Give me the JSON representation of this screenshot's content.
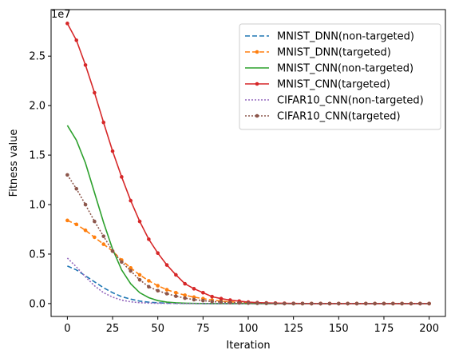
{
  "chart_data": {
    "type": "line",
    "xlabel": "Iteration",
    "ylabel": "Fitness value",
    "y_scale_note": "1e7",
    "xlim": [
      -9,
      209
    ],
    "ylim": [
      -0.13,
      2.97
    ],
    "x_ticks": [
      0,
      25,
      50,
      75,
      100,
      125,
      150,
      175,
      200
    ],
    "y_ticks": [
      0.0,
      0.5,
      1.0,
      1.5,
      2.0,
      2.5
    ],
    "y_tick_labels": [
      "0.0",
      "0.5",
      "1.0",
      "1.5",
      "2.0",
      "2.5"
    ],
    "legend_position": "top-right",
    "grid": false,
    "series": [
      {
        "name": "MNIST_DNN(non-targeted)",
        "color": "#1f77b4",
        "dash": "6,3",
        "marker": "none",
        "x": [
          0,
          5,
          10,
          15,
          20,
          25,
          30,
          35,
          40,
          45,
          50,
          55,
          60,
          65,
          70,
          75,
          80,
          90,
          100,
          120,
          150,
          200
        ],
        "y": [
          0.38,
          0.34,
          0.28,
          0.22,
          0.16,
          0.11,
          0.07,
          0.045,
          0.025,
          0.014,
          0.008,
          0.005,
          0.003,
          0.002,
          0.001,
          0.0,
          0.0,
          0.0,
          0.0,
          0.0,
          0.0,
          0.0
        ]
      },
      {
        "name": "MNIST_DNN(targeted)",
        "color": "#ff7f0e",
        "dash": "6,3",
        "marker": "circle",
        "x": [
          0,
          5,
          10,
          15,
          20,
          25,
          30,
          35,
          40,
          45,
          50,
          55,
          60,
          65,
          70,
          75,
          80,
          85,
          90,
          95,
          100,
          105,
          110,
          115,
          120,
          125,
          130,
          135,
          140,
          145,
          150,
          155,
          160,
          165,
          170,
          175,
          180,
          185,
          190,
          195,
          200
        ],
        "y": [
          0.84,
          0.8,
          0.74,
          0.67,
          0.6,
          0.53,
          0.44,
          0.36,
          0.29,
          0.23,
          0.18,
          0.14,
          0.11,
          0.085,
          0.065,
          0.05,
          0.035,
          0.025,
          0.018,
          0.012,
          0.008,
          0.005,
          0.003,
          0.002,
          0.001,
          0.0,
          0.0,
          0.0,
          0.0,
          0.0,
          0.0,
          0.0,
          0.0,
          0.0,
          0.0,
          0.0,
          0.0,
          0.0,
          0.0,
          0.0,
          0.0
        ]
      },
      {
        "name": "MNIST_CNN(non-targeted)",
        "color": "#2ca02c",
        "dash": "",
        "marker": "none",
        "x": [
          0,
          5,
          10,
          15,
          20,
          25,
          30,
          35,
          40,
          45,
          50,
          55,
          60,
          65,
          70,
          75,
          80,
          90,
          100,
          120,
          150,
          200
        ],
        "y": [
          1.8,
          1.65,
          1.42,
          1.12,
          0.82,
          0.55,
          0.34,
          0.2,
          0.11,
          0.06,
          0.03,
          0.015,
          0.008,
          0.004,
          0.002,
          0.001,
          0.0,
          0.0,
          0.0,
          0.0,
          0.0,
          0.0
        ]
      },
      {
        "name": "MNIST_CNN(targeted)",
        "color": "#d62728",
        "dash": "",
        "marker": "circle",
        "x": [
          0,
          5,
          10,
          15,
          20,
          25,
          30,
          35,
          40,
          45,
          50,
          55,
          60,
          65,
          70,
          75,
          80,
          85,
          90,
          95,
          100,
          105,
          110,
          115,
          120,
          125,
          130,
          135,
          140,
          145,
          150,
          155,
          160,
          165,
          170,
          175,
          180,
          185,
          190,
          195,
          200
        ],
        "y": [
          2.83,
          2.66,
          2.41,
          2.13,
          1.83,
          1.54,
          1.28,
          1.04,
          0.83,
          0.65,
          0.51,
          0.39,
          0.29,
          0.2,
          0.15,
          0.11,
          0.07,
          0.05,
          0.035,
          0.025,
          0.015,
          0.01,
          0.007,
          0.005,
          0.003,
          0.002,
          0.001,
          0.0,
          0.0,
          0.0,
          0.0,
          0.0,
          0.0,
          0.0,
          0.0,
          0.0,
          0.0,
          0.0,
          0.0,
          0.0,
          0.0
        ]
      },
      {
        "name": "CIFAR10_CNN(non-targeted)",
        "color": "#9467bd",
        "dash": "2,2",
        "marker": "none",
        "x": [
          0,
          5,
          10,
          15,
          20,
          25,
          30,
          35,
          40,
          45,
          50,
          55,
          60,
          65,
          70,
          80,
          90,
          100,
          120,
          150,
          200
        ],
        "y": [
          0.46,
          0.37,
          0.27,
          0.18,
          0.11,
          0.065,
          0.035,
          0.018,
          0.009,
          0.005,
          0.003,
          0.002,
          0.001,
          0.0,
          0.0,
          0.0,
          0.0,
          0.0,
          0.0,
          0.0,
          0.0
        ]
      },
      {
        "name": "CIFAR10_CNN(targeted)",
        "color": "#8c564b",
        "dash": "2,2",
        "marker": "circle",
        "x": [
          0,
          5,
          10,
          15,
          20,
          25,
          30,
          35,
          40,
          45,
          50,
          55,
          60,
          65,
          70,
          75,
          80,
          85,
          90,
          95,
          100,
          105,
          110,
          115,
          120,
          125,
          130,
          135,
          140,
          145,
          150,
          155,
          160,
          165,
          170,
          175,
          180,
          185,
          190,
          195,
          200
        ],
        "y": [
          1.3,
          1.16,
          1.0,
          0.83,
          0.68,
          0.53,
          0.42,
          0.33,
          0.24,
          0.17,
          0.13,
          0.1,
          0.075,
          0.055,
          0.04,
          0.03,
          0.02,
          0.015,
          0.01,
          0.007,
          0.005,
          0.003,
          0.002,
          0.001,
          0.0,
          0.0,
          0.0,
          0.0,
          0.0,
          0.0,
          0.0,
          0.0,
          0.0,
          0.0,
          0.0,
          0.0,
          0.0,
          0.0,
          0.0,
          0.0,
          0.0
        ]
      }
    ]
  }
}
